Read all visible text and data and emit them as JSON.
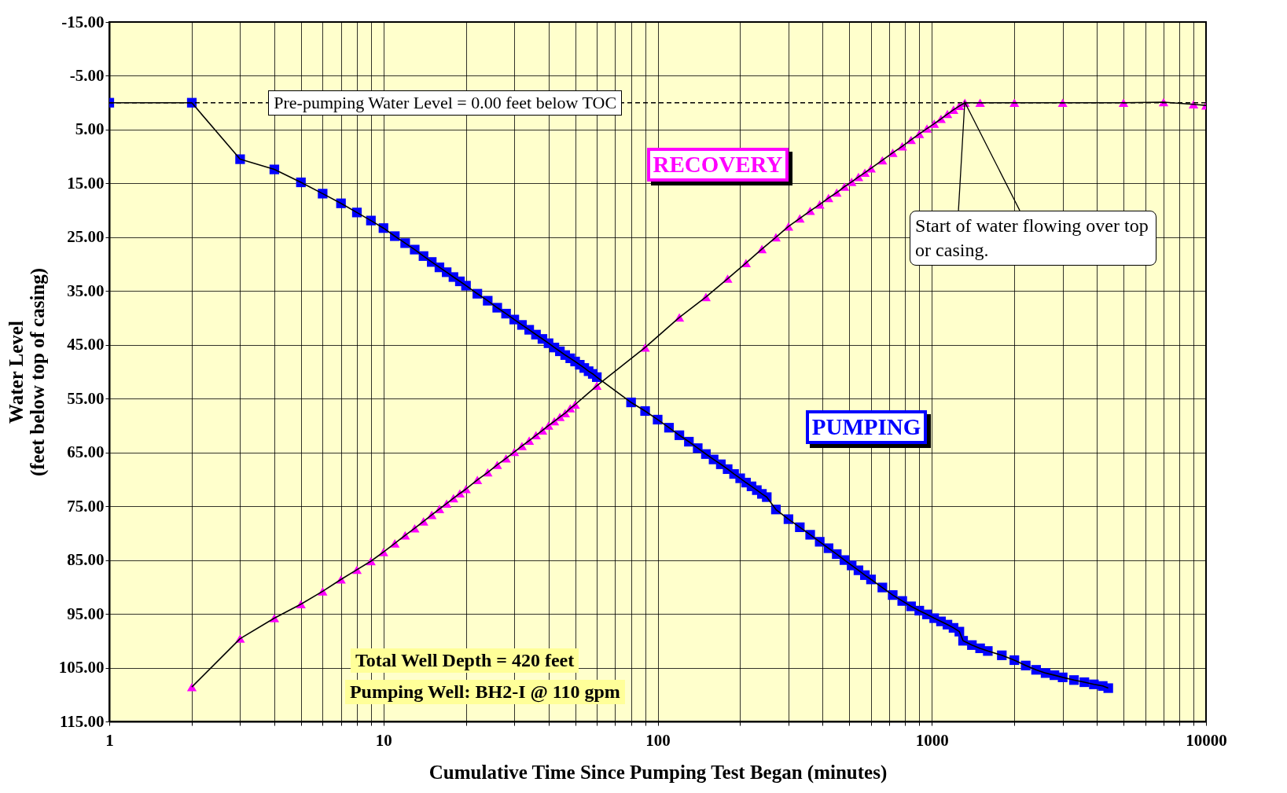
{
  "chart_data": {
    "type": "line",
    "xlabel": "Cumulative Time Since Pumping Test Began (minutes)",
    "ylabel": "Water Level\n(feet below top of casing)",
    "log": "x",
    "grid": true,
    "legend": false,
    "xlim": [
      1,
      10000
    ],
    "xticks": [
      1,
      {
        "value": 2,
        "label": null
      },
      {
        "value": 3,
        "label": null
      },
      {
        "value": 4,
        "label": null
      },
      {
        "value": 5,
        "label": null
      },
      {
        "value": 6,
        "label": null
      },
      {
        "value": 7,
        "label": null
      },
      {
        "value": 8,
        "label": null
      },
      {
        "value": 9,
        "label": null
      },
      10,
      {
        "value": 20,
        "label": null
      },
      {
        "value": 30,
        "label": null
      },
      {
        "value": 40,
        "label": null
      },
      {
        "value": 50,
        "label": null
      },
      {
        "value": 60,
        "label": null
      },
      {
        "value": 70,
        "label": null
      },
      {
        "value": 80,
        "label": null
      },
      {
        "value": 90,
        "label": null
      },
      100,
      {
        "value": 200,
        "label": null
      },
      {
        "value": 300,
        "label": null
      },
      {
        "value": 400,
        "label": null
      },
      {
        "value": 500,
        "label": null
      },
      {
        "value": 600,
        "label": null
      },
      {
        "value": 700,
        "label": null
      },
      {
        "value": 800,
        "label": null
      },
      {
        "value": 900,
        "label": null
      },
      1000,
      {
        "value": 2000,
        "label": null
      },
      {
        "value": 3000,
        "label": null
      },
      {
        "value": 4000,
        "label": null
      },
      {
        "value": 5000,
        "label": null
      },
      {
        "value": 6000,
        "label": null
      },
      {
        "value": 7000,
        "label": null
      },
      {
        "value": 8000,
        "label": null
      },
      {
        "value": 9000,
        "label": null
      },
      10000
    ],
    "ylim": [
      115,
      -15
    ],
    "yticks": [
      {
        "value": -15,
        "label": "-15.00"
      },
      {
        "value": -5,
        "label": "-5.00"
      },
      {
        "value": 5,
        "label": "5.00"
      },
      {
        "value": 15,
        "label": "15.00"
      },
      {
        "value": 25,
        "label": "25.00"
      },
      {
        "value": 35,
        "label": "35.00"
      },
      {
        "value": 45,
        "label": "45.00"
      },
      {
        "value": 55,
        "label": "55.00"
      },
      {
        "value": 65,
        "label": "65.00"
      },
      {
        "value": 75,
        "label": "75.00"
      },
      {
        "value": 85,
        "label": "85.00"
      },
      {
        "value": 95,
        "label": "95.00"
      },
      {
        "value": 105,
        "label": "105.00"
      },
      {
        "value": 115,
        "label": "115.00"
      }
    ],
    "ref_lines": [
      {
        "axis": "y",
        "value": 0,
        "label": "Pre-pumping Water Level = 0.00  feet below TOC",
        "line_style": "dashed"
      }
    ],
    "annotations": [
      "Start of water flowing over top or casing.",
      "Total Well Depth = 420 feet",
      "Pumping Well: BH2-I @ 110 gpm"
    ],
    "series": [
      {
        "name": "PUMPING",
        "color": "#0000ff",
        "marker": "square",
        "x": [
          1,
          2,
          3,
          4,
          5,
          6,
          7,
          8,
          9,
          10,
          11,
          12,
          13,
          14,
          15,
          16,
          17,
          18,
          19,
          20,
          22,
          24,
          26,
          28,
          30,
          32,
          34,
          36,
          38,
          40,
          42,
          44,
          46,
          48,
          50,
          52,
          54,
          56,
          58,
          60,
          80,
          90,
          100,
          110,
          120,
          130,
          140,
          150,
          160,
          170,
          180,
          190,
          200,
          210,
          220,
          230,
          240,
          250,
          270,
          300,
          330,
          360,
          390,
          420,
          450,
          480,
          510,
          540,
          570,
          600,
          660,
          720,
          780,
          840,
          900,
          960,
          1020,
          1080,
          1140,
          1200,
          1260,
          1300,
          1400,
          1500,
          1600,
          1800,
          2000,
          2200,
          2400,
          2600,
          2800,
          3000,
          3300,
          3600,
          3900,
          4200,
          4400
        ],
        "values": [
          0,
          0,
          10.5,
          12.4,
          14.8,
          16.9,
          18.7,
          20.4,
          21.9,
          23.3,
          24.8,
          26.1,
          27.3,
          28.5,
          29.6,
          30.6,
          31.5,
          32.4,
          33.2,
          34.0,
          35.5,
          36.8,
          38.1,
          39.2,
          40.3,
          41.3,
          42.2,
          43.1,
          43.9,
          44.7,
          45.5,
          46.2,
          46.9,
          47.5,
          48.1,
          48.7,
          49.3,
          49.9,
          50.4,
          51.0,
          55.7,
          57.3,
          58.9,
          60.4,
          61.8,
          63.0,
          64.2,
          65.3,
          66.3,
          67.2,
          68.1,
          69.0,
          69.8,
          70.6,
          71.3,
          72.0,
          72.7,
          73.3,
          75.6,
          77.4,
          78.9,
          80.3,
          81.6,
          82.8,
          83.9,
          85.0,
          86.0,
          86.9,
          87.8,
          88.6,
          90.1,
          91.5,
          92.6,
          93.6,
          94.4,
          95.1,
          95.8,
          96.4,
          97.0,
          97.6,
          98.3,
          100.0,
          100.8,
          101.4,
          101.9,
          102.7,
          103.6,
          104.6,
          105.4,
          106.0,
          106.4,
          106.8,
          107.3,
          107.7,
          108.1,
          108.4,
          108.8
        ]
      },
      {
        "name": "RECOVERY",
        "color": "#ff00ff",
        "marker": "triangle",
        "x": [
          2,
          3,
          4,
          5,
          6,
          7,
          8,
          9,
          10,
          11,
          12,
          13,
          14,
          15,
          16,
          17,
          18,
          19,
          20,
          22,
          24,
          26,
          28,
          30,
          32,
          34,
          36,
          38,
          40,
          42,
          44,
          46,
          48,
          50,
          60,
          90,
          120,
          150,
          180,
          210,
          240,
          270,
          300,
          330,
          360,
          390,
          420,
          450,
          480,
          510,
          540,
          570,
          600,
          660,
          720,
          780,
          840,
          900,
          960,
          1020,
          1080,
          1140,
          1200,
          1260,
          1320,
          1500,
          2000,
          3000,
          5000,
          7000,
          9000,
          10000
        ],
        "values": [
          108.6,
          99.6,
          95.8,
          93.2,
          90.8,
          88.6,
          86.8,
          85.2,
          83.5,
          81.9,
          80.4,
          79.1,
          77.8,
          76.6,
          75.5,
          74.5,
          73.5,
          72.6,
          71.8,
          70.1,
          68.7,
          67.3,
          66.1,
          64.9,
          63.8,
          62.8,
          61.8,
          60.9,
          60.0,
          59.2,
          58.4,
          57.7,
          56.8,
          56.1,
          52.6,
          45.5,
          39.9,
          36.1,
          32.7,
          29.8,
          27.2,
          25.0,
          23.0,
          21.5,
          20.1,
          18.9,
          17.7,
          16.7,
          15.6,
          14.7,
          13.8,
          13.0,
          12.2,
          10.7,
          9.3,
          8.1,
          6.9,
          5.8,
          4.8,
          3.9,
          3.0,
          2.1,
          1.3,
          0.6,
          0.0,
          0.0,
          0.0,
          0.0,
          0.0,
          -0.1,
          0.3,
          0.5
        ]
      }
    ]
  }
}
